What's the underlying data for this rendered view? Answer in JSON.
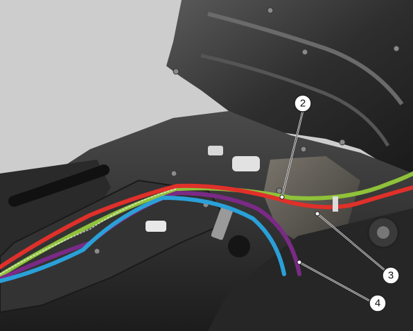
{
  "image": {
    "description_kind": "service-manual photograph with callouts",
    "background_color": "#cfcfcf",
    "callouts": [
      {
        "id": "callout-2",
        "label": "2"
      },
      {
        "id": "callout-3",
        "label": "3"
      },
      {
        "id": "callout-4",
        "label": "4"
      }
    ],
    "cable_colors": {
      "green": "#8fc23a",
      "red": "#e0302a",
      "purple": "#7a2a86",
      "blue": "#2aa0d8"
    }
  }
}
